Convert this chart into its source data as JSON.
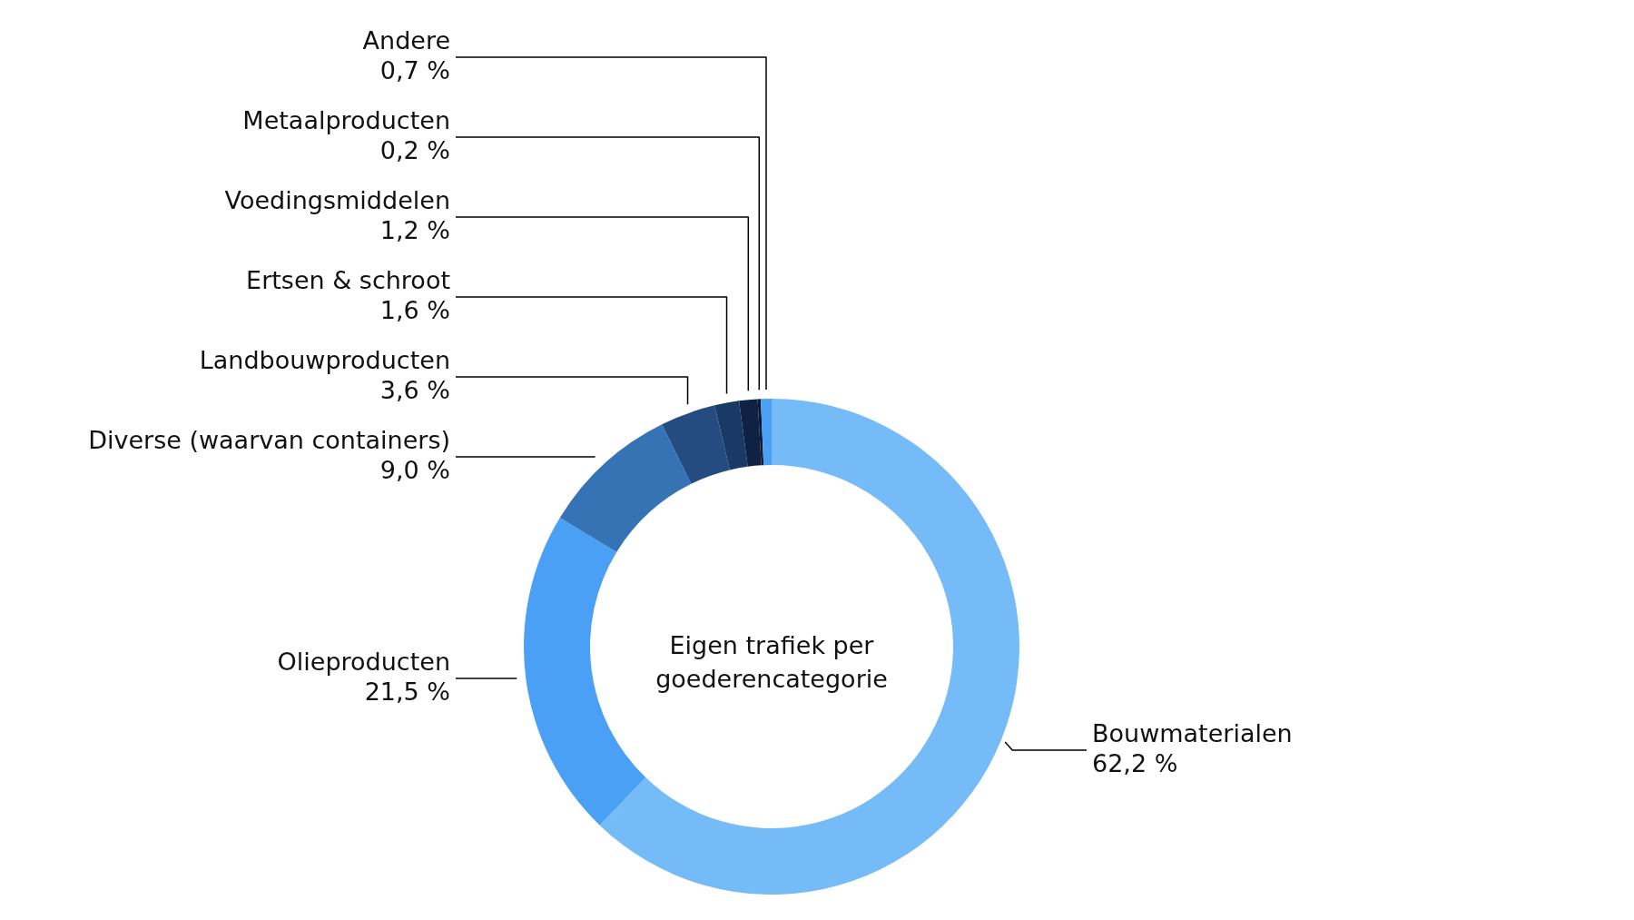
{
  "chart_data": {
    "type": "donut",
    "title": "Eigen trafiek per goederencategorie",
    "categories": [
      "Bouwmaterialen",
      "Olieproducten",
      "Diverse (waarvan containers)",
      "Landbouwproducten",
      "Ertsen & schroot",
      "Voedingsmiddelen",
      "Metaalproducten",
      "Andere"
    ],
    "values": [
      62.2,
      21.5,
      9.0,
      3.6,
      1.6,
      1.2,
      0.2,
      0.7
    ],
    "value_labels": [
      "62,2 %",
      "21,5 %",
      "9,0 %",
      "3,6 %",
      "1,6 %",
      "1,2 %",
      "0,2 %",
      "0,7 %"
    ],
    "colors": [
      "#74bbf7",
      "#4aa0f5",
      "#3573b5",
      "#244c80",
      "#1a3a66",
      "#0f2244",
      "#0a1833",
      "#4aa0f5"
    ]
  }
}
